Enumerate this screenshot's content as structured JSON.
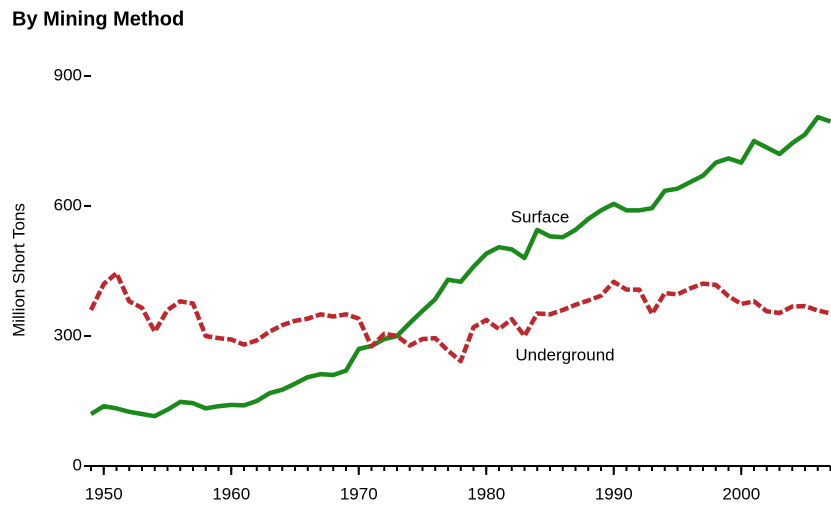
{
  "chart_data": {
    "type": "line",
    "title": "By Mining Method",
    "ylabel": "Million Short Tons",
    "x": [
      1949,
      1950,
      1951,
      1952,
      1953,
      1954,
      1955,
      1956,
      1957,
      1958,
      1959,
      1960,
      1961,
      1962,
      1963,
      1964,
      1965,
      1966,
      1967,
      1968,
      1969,
      1970,
      1971,
      1972,
      1973,
      1974,
      1975,
      1976,
      1977,
      1978,
      1979,
      1980,
      1981,
      1982,
      1983,
      1984,
      1985,
      1986,
      1987,
      1988,
      1989,
      1990,
      1991,
      1992,
      1993,
      1994,
      1995,
      1996,
      1997,
      1998,
      1999,
      2000,
      2001,
      2002,
      2003,
      2004,
      2005,
      2006,
      2007
    ],
    "series": [
      {
        "name": "Surface",
        "color": "#1a8a1a",
        "dashed": false,
        "values": [
          120,
          138,
          133,
          125,
          120,
          115,
          130,
          148,
          145,
          133,
          138,
          141,
          140,
          150,
          168,
          176,
          190,
          205,
          212,
          210,
          220,
          270,
          277,
          293,
          300,
          330,
          358,
          385,
          430,
          425,
          460,
          490,
          505,
          500,
          480,
          545,
          530,
          528,
          545,
          570,
          590,
          605,
          590,
          590,
          595,
          635,
          640,
          655,
          670,
          700,
          710,
          700,
          750,
          735,
          720,
          745,
          765,
          805,
          795
        ]
      },
      {
        "name": "Underground",
        "color": "#c0272d",
        "dashed": true,
        "values": [
          360,
          420,
          445,
          380,
          365,
          310,
          360,
          380,
          375,
          300,
          295,
          292,
          280,
          290,
          310,
          325,
          335,
          340,
          350,
          345,
          350,
          340,
          276,
          305,
          300,
          278,
          293,
          295,
          266,
          242,
          320,
          337,
          316,
          339,
          300,
          352,
          350,
          360,
          372,
          382,
          393,
          425,
          407,
          407,
          351,
          399,
          396,
          410,
          421,
          418,
          392,
          374,
          380,
          357,
          353,
          368,
          369,
          359,
          352
        ]
      }
    ],
    "xlim": [
      1949,
      2007
    ],
    "xticks": [
      1950,
      1960,
      1970,
      1980,
      1990,
      2000
    ],
    "xminor_ticks": [
      1949,
      1950,
      1951,
      1952,
      1953,
      1954,
      1955,
      1956,
      1957,
      1958,
      1959,
      1960,
      1961,
      1962,
      1963,
      1964,
      1965,
      1966,
      1967,
      1968,
      1969,
      1970,
      1971,
      1972,
      1973,
      1974,
      1975,
      1976,
      1977,
      1978,
      1979,
      1980,
      1981,
      1982,
      1983,
      1984,
      1985,
      1986,
      1987,
      1988,
      1989,
      1990,
      1991,
      1992,
      1993,
      1994,
      1995,
      1996,
      1997,
      1998,
      1999,
      2000,
      2001,
      2002,
      2003,
      2004,
      2005,
      2006,
      2007
    ],
    "ylim": [
      0,
      900
    ],
    "yticks": [
      0,
      300,
      600,
      900
    ]
  }
}
